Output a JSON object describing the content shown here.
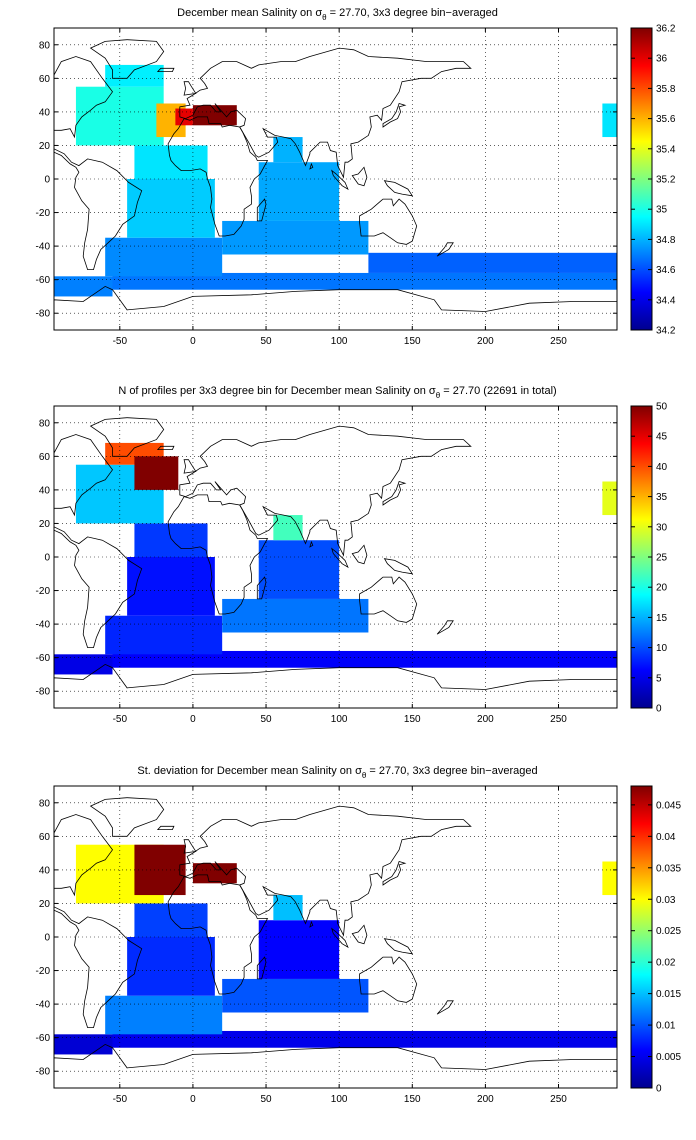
{
  "figure": {
    "x_ticks": [
      "-50",
      "0",
      "50",
      "100",
      "150",
      "200",
      "250"
    ],
    "y_ticks": [
      "80",
      "60",
      "40",
      "20",
      "0",
      "-20",
      "-40",
      "-60",
      "-80"
    ]
  },
  "chart_data": [
    {
      "type": "heatmap",
      "title_before": "December mean Salinity on ",
      "title_symbol": "σ",
      "title_subscript": "θ",
      "title_after": " = 27.70, 3x3 degree bin−averaged",
      "xlim": [
        -95,
        290
      ],
      "ylim": [
        -90,
        90
      ],
      "colorbar": {
        "range": [
          34.2,
          36.2
        ],
        "ticks": [
          "36.2",
          "36",
          "35.8",
          "35.6",
          "35.4",
          "35.2",
          "35",
          "34.8",
          "34.6",
          "34.4",
          "34.2"
        ]
      },
      "regions": [
        {
          "x": [
            -95,
            -55
          ],
          "y": [
            -70,
            -58
          ],
          "value": 34.7
        },
        {
          "x": [
            -55,
            290
          ],
          "y": [
            -66,
            -56
          ],
          "value": 34.68
        },
        {
          "x": [
            -60,
            20
          ],
          "y": [
            -58,
            -35
          ],
          "value": 34.72
        },
        {
          "x": [
            -45,
            15
          ],
          "y": [
            -35,
            0
          ],
          "value": 34.85
        },
        {
          "x": [
            -40,
            10
          ],
          "y": [
            0,
            20
          ],
          "value": 34.9
        },
        {
          "x": [
            -80,
            -20
          ],
          "y": [
            20,
            55
          ],
          "value": 35.0
        },
        {
          "x": [
            -60,
            -20
          ],
          "y": [
            55,
            68
          ],
          "value": 34.92
        },
        {
          "x": [
            -25,
            -5
          ],
          "y": [
            25,
            45
          ],
          "value": 35.6
        },
        {
          "x": [
            -12,
            0
          ],
          "y": [
            32,
            42
          ],
          "value": 36.0
        },
        {
          "x": [
            0,
            30
          ],
          "y": [
            32,
            44
          ],
          "value": 36.2
        },
        {
          "x": [
            20,
            120
          ],
          "y": [
            -45,
            -25
          ],
          "value": 34.75
        },
        {
          "x": [
            45,
            100
          ],
          "y": [
            -25,
            10
          ],
          "value": 34.78
        },
        {
          "x": [
            55,
            75
          ],
          "y": [
            10,
            25
          ],
          "value": 34.8
        },
        {
          "x": [
            280,
            290
          ],
          "y": [
            25,
            45
          ],
          "value": 34.9
        },
        {
          "x": [
            120,
            290
          ],
          "y": [
            -56,
            -44
          ],
          "value": 34.64
        }
      ]
    },
    {
      "type": "heatmap",
      "title_before": "N of profiles per 3x3 degree bin for December mean Salinity on ",
      "title_symbol": "σ",
      "title_subscript": "θ",
      "title_after": " = 27.70 (22691 in total)",
      "xlim": [
        -95,
        290
      ],
      "ylim": [
        -90,
        90
      ],
      "colorbar": {
        "range": [
          0,
          50
        ],
        "ticks": [
          "50",
          "45",
          "40",
          "35",
          "30",
          "25",
          "20",
          "15",
          "10",
          "5",
          "0"
        ]
      },
      "regions": [
        {
          "x": [
            -95,
            -55
          ],
          "y": [
            -70,
            -58
          ],
          "value": 5
        },
        {
          "x": [
            -55,
            290
          ],
          "y": [
            -66,
            -56
          ],
          "value": 6
        },
        {
          "x": [
            -60,
            20
          ],
          "y": [
            -58,
            -35
          ],
          "value": 8
        },
        {
          "x": [
            -45,
            15
          ],
          "y": [
            -35,
            0
          ],
          "value": 7
        },
        {
          "x": [
            -40,
            10
          ],
          "y": [
            0,
            20
          ],
          "value": 9
        },
        {
          "x": [
            -80,
            -20
          ],
          "y": [
            20,
            55
          ],
          "value": 16
        },
        {
          "x": [
            -60,
            -20
          ],
          "y": [
            55,
            68
          ],
          "value": 40
        },
        {
          "x": [
            -40,
            -10
          ],
          "y": [
            40,
            60
          ],
          "value": 50
        },
        {
          "x": [
            20,
            120
          ],
          "y": [
            -45,
            -25
          ],
          "value": 12
        },
        {
          "x": [
            45,
            100
          ],
          "y": [
            -25,
            10
          ],
          "value": 10
        },
        {
          "x": [
            55,
            75
          ],
          "y": [
            10,
            25
          ],
          "value": 22
        },
        {
          "x": [
            280,
            290
          ],
          "y": [
            25,
            45
          ],
          "value": 30
        }
      ]
    },
    {
      "type": "heatmap",
      "title_before": "St. deviation for December mean Salinity on ",
      "title_symbol": "σ",
      "title_subscript": "θ",
      "title_after": " = 27.70, 3x3 degree bin−averaged",
      "xlim": [
        -95,
        290
      ],
      "ylim": [
        -90,
        90
      ],
      "colorbar": {
        "range": [
          0,
          0.048
        ],
        "ticks": [
          "0.045",
          "0.04",
          "0.035",
          "0.03",
          "0.025",
          "0.02",
          "0.015",
          "0.01",
          "0.005",
          "0"
        ]
      },
      "regions": [
        {
          "x": [
            -95,
            -55
          ],
          "y": [
            -70,
            -58
          ],
          "value": 0.004
        },
        {
          "x": [
            -55,
            290
          ],
          "y": [
            -66,
            -56
          ],
          "value": 0.005
        },
        {
          "x": [
            -60,
            20
          ],
          "y": [
            -58,
            -35
          ],
          "value": 0.012
        },
        {
          "x": [
            -45,
            15
          ],
          "y": [
            -35,
            0
          ],
          "value": 0.008
        },
        {
          "x": [
            -40,
            10
          ],
          "y": [
            0,
            20
          ],
          "value": 0.009
        },
        {
          "x": [
            -80,
            -20
          ],
          "y": [
            20,
            55
          ],
          "value": 0.03
        },
        {
          "x": [
            -40,
            -5
          ],
          "y": [
            25,
            55
          ],
          "value": 0.048
        },
        {
          "x": [
            0,
            30
          ],
          "y": [
            32,
            44
          ],
          "value": 0.048
        },
        {
          "x": [
            20,
            120
          ],
          "y": [
            -45,
            -25
          ],
          "value": 0.01
        },
        {
          "x": [
            45,
            100
          ],
          "y": [
            -25,
            10
          ],
          "value": 0.006
        },
        {
          "x": [
            55,
            75
          ],
          "y": [
            10,
            25
          ],
          "value": 0.015
        },
        {
          "x": [
            280,
            290
          ],
          "y": [
            25,
            45
          ],
          "value": 0.03
        }
      ]
    }
  ]
}
